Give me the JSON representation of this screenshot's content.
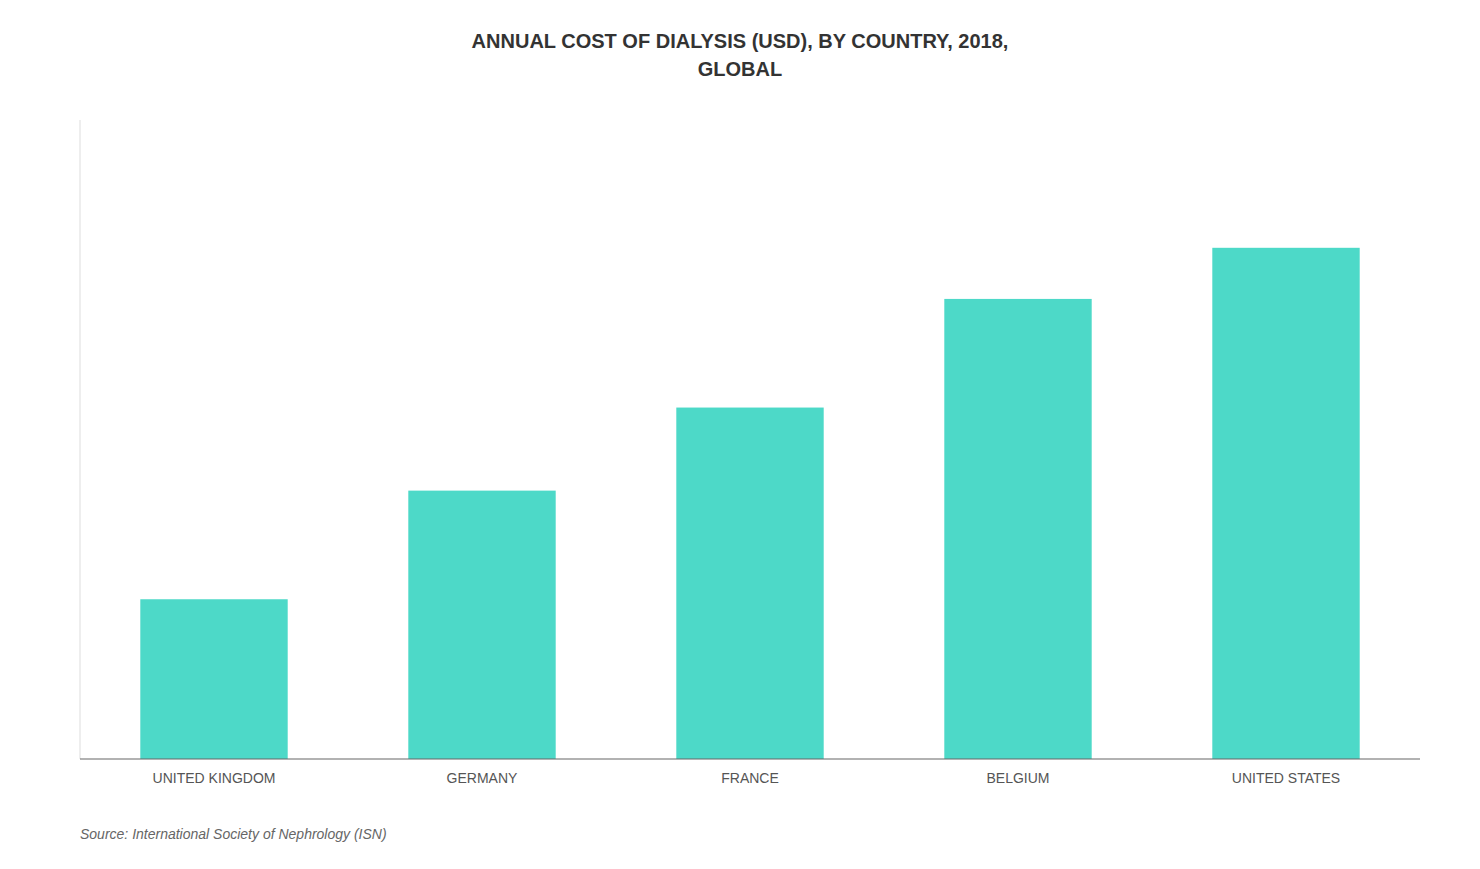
{
  "chart_data": {
    "type": "bar",
    "title": "ANNUAL COST OF DIALYSIS (USD), BY COUNTRY, 2018,\nGLOBAL",
    "categories": [
      "UNITED KINGDOM",
      "GERMANY",
      "FRANCE",
      "BELGIUM",
      "UNITED STATES"
    ],
    "values": [
      25,
      42,
      55,
      72,
      80
    ],
    "color": "#4DD9C8",
    "ylim": [
      0,
      100
    ],
    "grid": false,
    "tick_labels": "x",
    "annotations": [
      "Source: International Society of Nephrology (ISN)"
    ]
  }
}
